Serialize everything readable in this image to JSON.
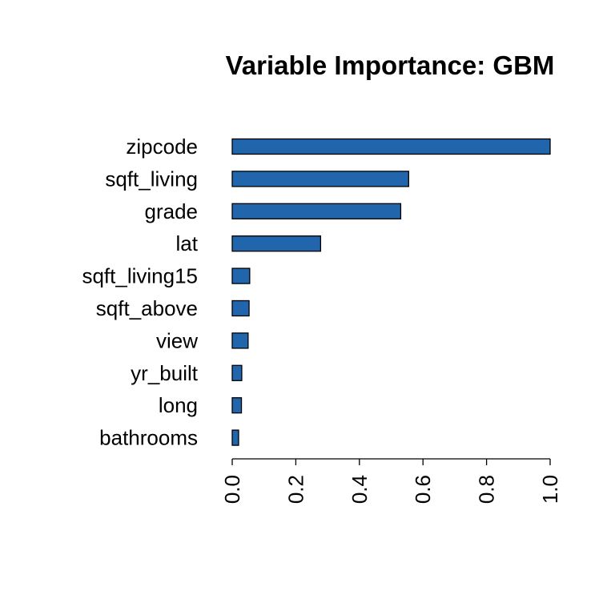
{
  "chart_data": {
    "type": "bar",
    "orientation": "horizontal",
    "title": "Variable Importance: GBM",
    "xlabel": "",
    "ylabel": "",
    "categories": [
      "zipcode",
      "sqft_living",
      "grade",
      "lat",
      "sqft_living15",
      "sqft_above",
      "view",
      "yr_built",
      "long",
      "bathrooms"
    ],
    "values": [
      1.0,
      0.555,
      0.53,
      0.278,
      0.055,
      0.053,
      0.05,
      0.03,
      0.029,
      0.02
    ],
    "xlim": [
      0,
      1.0
    ],
    "ticks": [
      "0.0",
      "0.2",
      "0.4",
      "0.6",
      "0.8",
      "1.0"
    ],
    "grid": false,
    "bar_color": "#2166AC",
    "bar_border_color": "#000000"
  }
}
